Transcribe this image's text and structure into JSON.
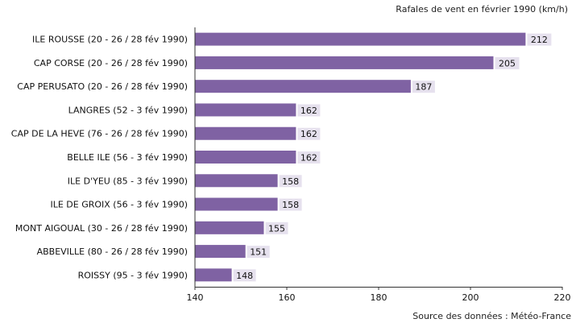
{
  "chart_data": {
    "type": "bar",
    "orientation": "horizontal",
    "title": "Rafales de vent en février 1990 (km/h)",
    "source": "Source des données : Météo-France",
    "categories": [
      "ILE ROUSSE (20 - 26 / 28 fév 1990)",
      "CAP CORSE (20 - 26 / 28 fév 1990)",
      "CAP PERUSATO (20 - 26 / 28 fév 1990)",
      "LANGRES (52 - 3 fév 1990)",
      "CAP DE LA HEVE (76 - 26 / 28 fév 1990)",
      "BELLE ILE (56 - 3 fév 1990)",
      "ILE D'YEU (85 - 3 fév 1990)",
      "ILE DE GROIX (56 - 3 fév 1990)",
      "MONT AIGOUAL (30 - 26 / 28 fév 1990)",
      "ABBEVILLE (80 - 26 / 28 fév 1990)",
      "ROISSY (95 - 3 fév 1990)"
    ],
    "values": [
      212,
      205,
      187,
      162,
      162,
      162,
      158,
      158,
      155,
      151,
      148
    ],
    "xlim": [
      140,
      220
    ],
    "xticks": [
      140,
      160,
      180,
      200,
      220
    ],
    "bar_color": "#7f62a3",
    "label_bg_color": "#e6e1ee",
    "axis_color": "#333333",
    "grid": false,
    "legend": "none"
  }
}
